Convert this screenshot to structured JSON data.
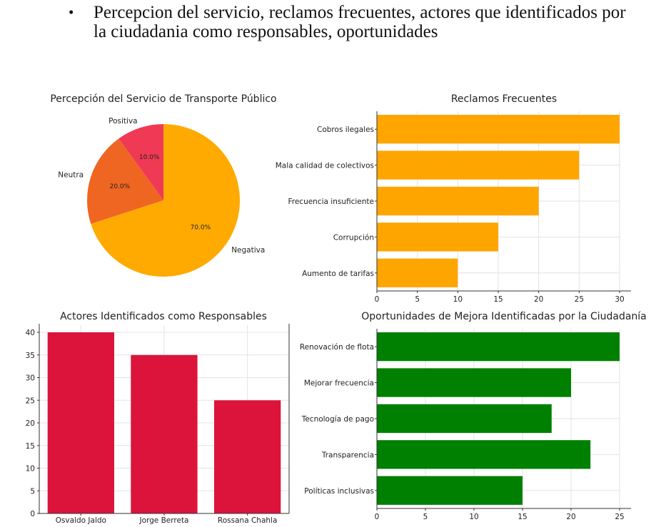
{
  "header": {
    "bullet": "•",
    "text": "Percepcion del servicio, reclamos frecuentes, actores que identificados por la ciudadania como responsables, oportunidades"
  },
  "colors": {
    "negativa": "#ffaa00",
    "neutra": "#ee6622",
    "positiva": "#f03a55",
    "reclamos": "#ffa500",
    "actores": "#dc143c",
    "oportunidades": "#008000"
  },
  "chart_data": [
    {
      "type": "pie",
      "title": "Percepción del Servicio de Transporte Público",
      "labels": [
        "Positiva",
        "Neutra",
        "Negativa"
      ],
      "values": [
        10,
        20,
        70
      ],
      "pct_labels": [
        "10.0%",
        "20.0%",
        "70.0%"
      ],
      "colors": [
        "#f03a55",
        "#ee6622",
        "#ffaa00"
      ]
    },
    {
      "type": "bar",
      "orientation": "horizontal",
      "title": "Reclamos Frecuentes",
      "categories": [
        "Cobros ilegales",
        "Mala calidad de colectivos",
        "Frecuencia insuficiente",
        "Corrupción",
        "Aumento de tarifas"
      ],
      "values": [
        30,
        25,
        20,
        15,
        10
      ],
      "xlim": [
        0,
        30
      ],
      "xticks": [
        0,
        5,
        10,
        15,
        20,
        25,
        30
      ],
      "color": "#ffa500"
    },
    {
      "type": "bar",
      "orientation": "vertical",
      "title": "Actores Identificados como Responsables",
      "categories": [
        "Osvaldo Jaldo",
        "Jorge Berreta",
        "Rossana Chahla"
      ],
      "values": [
        40,
        35,
        25
      ],
      "ylim": [
        0,
        40
      ],
      "yticks": [
        0,
        5,
        10,
        15,
        20,
        25,
        30,
        35,
        40
      ],
      "color": "#dc143c"
    },
    {
      "type": "bar",
      "orientation": "horizontal",
      "title": "Oportunidades de Mejora Identificadas por la Ciudadanía",
      "categories": [
        "Renovación de flota",
        "Mejorar frecuencia",
        "Tecnología de pago",
        "Transparencia",
        "Políticas inclusivas"
      ],
      "values": [
        25,
        20,
        18,
        22,
        15
      ],
      "xlim": [
        0,
        25
      ],
      "xticks": [
        0,
        5,
        10,
        15,
        20,
        25
      ],
      "color": "#008000"
    }
  ]
}
